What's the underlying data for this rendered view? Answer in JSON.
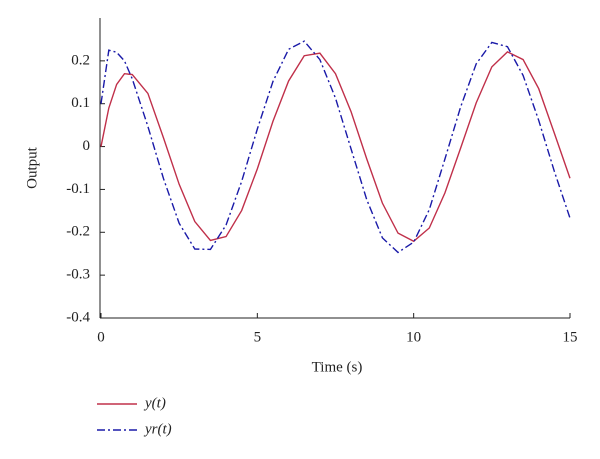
{
  "chart_data": {
    "type": "line",
    "x_label": "Time (s)",
    "y_label": "Output",
    "x": [
      0,
      0.25,
      0.5,
      0.75,
      1,
      1.5,
      2,
      2.5,
      3,
      3.5,
      4,
      4.5,
      5,
      5.5,
      6,
      6.5,
      7,
      7.5,
      8,
      8.5,
      9,
      9.5,
      10,
      10.5,
      11,
      11.5,
      12,
      12.5,
      13,
      13.5,
      14,
      14.5,
      15
    ],
    "series": [
      {
        "name": "y(t)",
        "color": "#c0304a",
        "dash": "none",
        "values": [
          0,
          0.09,
          0.145,
          0.17,
          0.168,
          0.124,
          0.02,
          -0.088,
          -0.175,
          -0.219,
          -0.21,
          -0.149,
          -0.052,
          0.059,
          0.153,
          0.212,
          0.218,
          0.17,
          0.081,
          -0.029,
          -0.132,
          -0.202,
          -0.221,
          -0.19,
          -0.108,
          -0.004,
          0.102,
          0.186,
          0.221,
          0.203,
          0.135,
          0.031,
          -0.074
        ]
      },
      {
        "name": "yr(t)",
        "color": "#1a1aa8",
        "dash": "8 3 2 3",
        "values": [
          0.1,
          0.225,
          0.22,
          0.2,
          0.158,
          0.047,
          -0.075,
          -0.179,
          -0.239,
          -0.24,
          -0.183,
          -0.081,
          0.041,
          0.152,
          0.227,
          0.246,
          0.203,
          0.113,
          -0.006,
          -0.124,
          -0.213,
          -0.247,
          -0.223,
          -0.147,
          -0.029,
          0.092,
          0.193,
          0.243,
          0.233,
          0.166,
          0.061,
          -0.058,
          -0.167
        ]
      }
    ],
    "xlim": [
      0,
      15
    ],
    "xticks": [
      0,
      5,
      10,
      15
    ],
    "ylim": [
      -0.4,
      0.3
    ],
    "yticks": [
      -0.4,
      -0.3,
      -0.2,
      -0.1,
      0,
      0.1,
      0.2
    ],
    "grid": false,
    "legend": "below"
  }
}
